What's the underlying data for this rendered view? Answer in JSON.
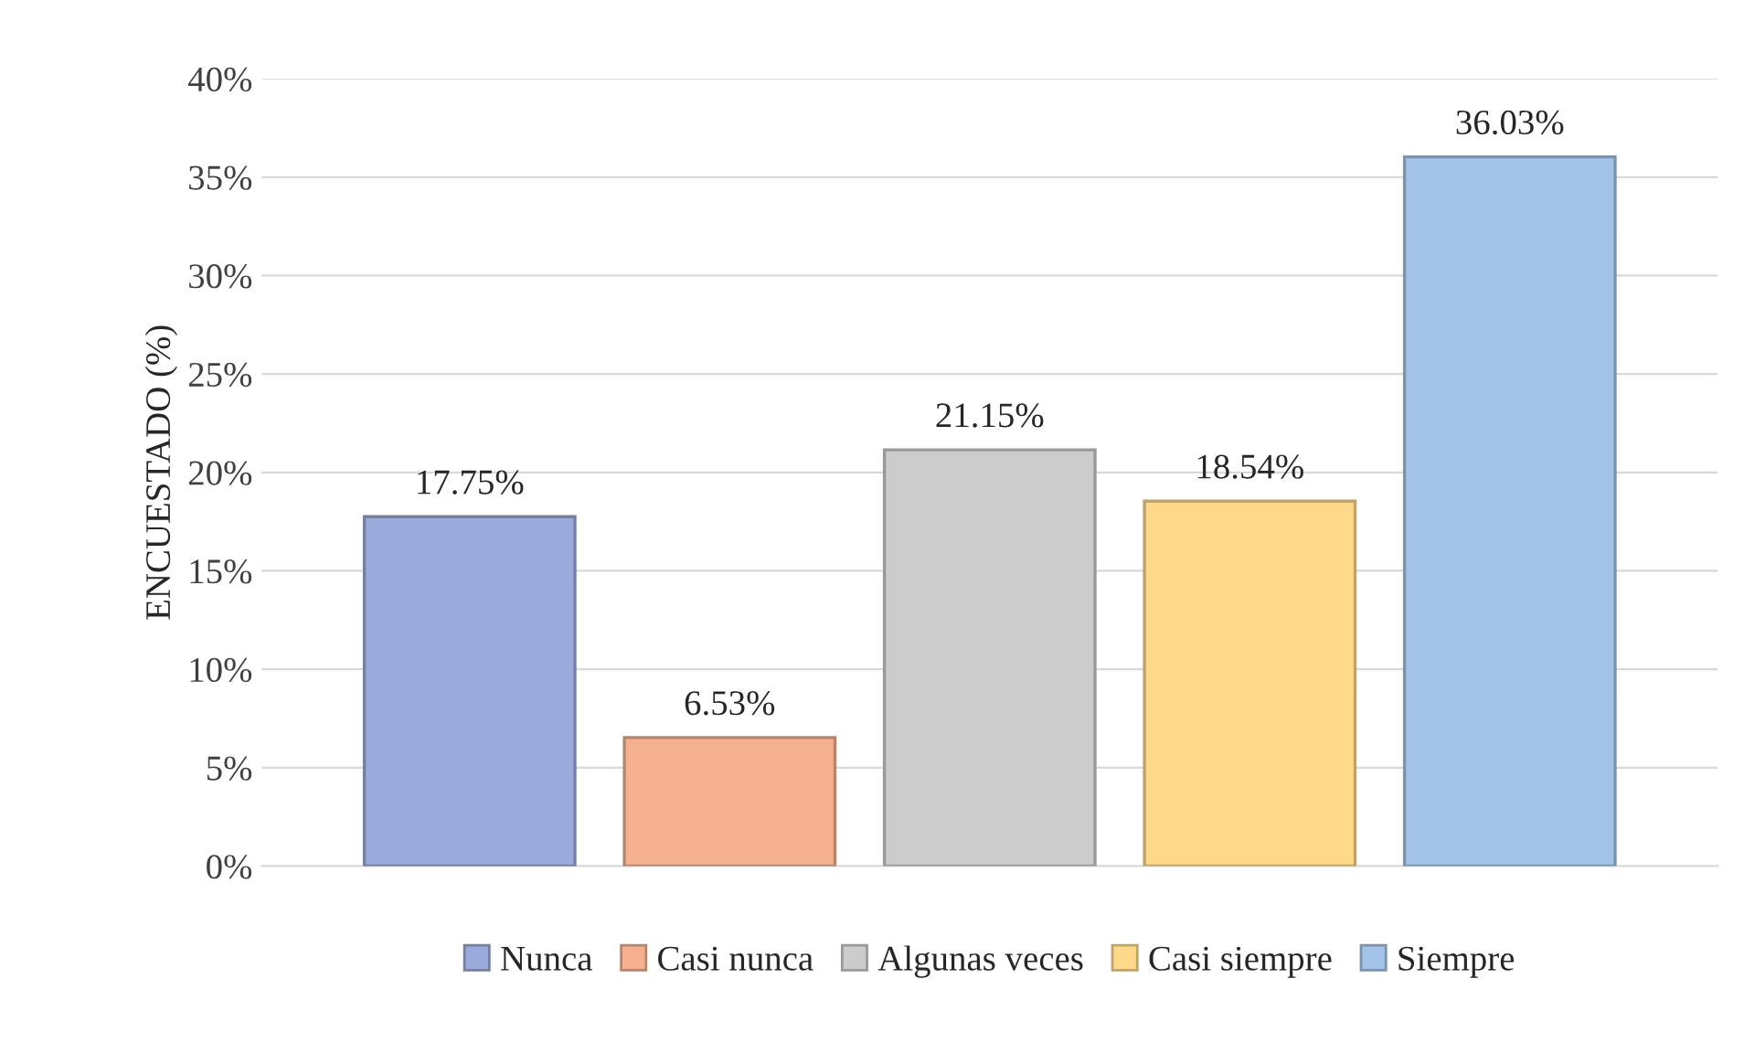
{
  "chart_data": {
    "type": "bar",
    "ylabel": "ENCUESTADO (%)",
    "categories": [
      null
    ],
    "series": [
      {
        "name": "Nunca",
        "color": "#9aabdb",
        "values": [
          17.75
        ],
        "value_labels": [
          "17.75%"
        ]
      },
      {
        "name": "Casi nunca",
        "color": "#f5b090",
        "values": [
          6.53
        ],
        "value_labels": [
          "6.53%"
        ]
      },
      {
        "name": "Algunas veces",
        "color": "#cccccc",
        "values": [
          21.15
        ],
        "value_labels": [
          "21.15%"
        ]
      },
      {
        "name": "Casi siempre",
        "color": "#ffd98a",
        "values": [
          18.54
        ],
        "value_labels": [
          "18.54%"
        ]
      },
      {
        "name": "Siempre",
        "color": "#a3c4e8",
        "values": [
          36.03
        ],
        "value_labels": [
          "36.03%"
        ]
      }
    ],
    "ylim": [
      0,
      40
    ],
    "yticks": [
      {
        "value": 0,
        "label": "0%"
      },
      {
        "value": 5,
        "label": "5%"
      },
      {
        "value": 10,
        "label": "10%"
      },
      {
        "value": 15,
        "label": "15%"
      },
      {
        "value": 20,
        "label": "20%"
      },
      {
        "value": 25,
        "label": "25%"
      },
      {
        "value": 30,
        "label": "30%"
      },
      {
        "value": 35,
        "label": "35%"
      },
      {
        "value": 40,
        "label": "40%"
      }
    ],
    "grid": "y",
    "legend": "bottom"
  }
}
